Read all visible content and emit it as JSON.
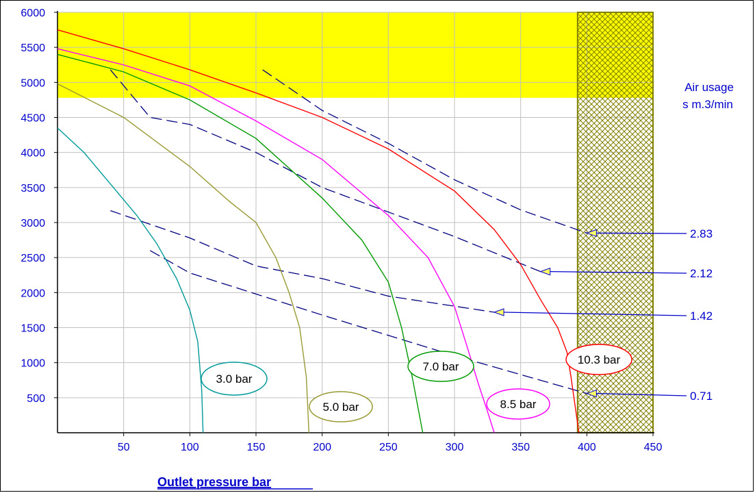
{
  "chart_data": {
    "type": "line",
    "xlabel": "Outlet pressure   bar",
    "ylabel": "",
    "xlim": [
      0,
      450
    ],
    "ylim": [
      0,
      6000
    ],
    "x_ticks": [
      50,
      100,
      150,
      200,
      250,
      300,
      350,
      400,
      450
    ],
    "y_ticks": [
      500,
      1000,
      1500,
      2000,
      2500,
      3000,
      3500,
      4000,
      4500,
      5000,
      5500,
      6000
    ],
    "grid": true,
    "highlight_band": {
      "y_from": 4780,
      "y_to": 6000,
      "color": "#ffff00"
    },
    "hatched_region": {
      "x_from": 393,
      "x_to": 450,
      "color": "#808000"
    },
    "air_usage_title": [
      "Air usage",
      "s m.3/min"
    ],
    "series": [
      {
        "name": "3.0 bar",
        "color": "#009999",
        "x": [
          0,
          20,
          40,
          60,
          75,
          90,
          100,
          106,
          109,
          110
        ],
        "y": [
          4350,
          4000,
          3550,
          3100,
          2700,
          2200,
          1750,
          1300,
          600,
          0
        ]
      },
      {
        "name": "5.0 bar",
        "color": "#999933",
        "x": [
          0,
          50,
          100,
          130,
          150,
          165,
          175,
          183,
          188,
          190
        ],
        "y": [
          4980,
          4500,
          3800,
          3300,
          3000,
          2500,
          2000,
          1500,
          800,
          0
        ]
      },
      {
        "name": "7.0 bar",
        "color": "#009900",
        "x": [
          0,
          50,
          100,
          150,
          200,
          230,
          250,
          260,
          268,
          273,
          276
        ],
        "y": [
          5400,
          5150,
          4750,
          4200,
          3350,
          2750,
          2150,
          1500,
          800,
          300,
          0
        ]
      },
      {
        "name": "8.5 bar",
        "color": "#ff00ff",
        "x": [
          0,
          50,
          100,
          150,
          200,
          250,
          280,
          300,
          310,
          318,
          325,
          330
        ],
        "y": [
          5480,
          5250,
          4950,
          4450,
          3900,
          3100,
          2500,
          1800,
          1200,
          700,
          300,
          0
        ]
      },
      {
        "name": "10.3 bar",
        "color": "#ff0000",
        "x": [
          0,
          50,
          100,
          150,
          200,
          250,
          300,
          330,
          350,
          365,
          378,
          385,
          388,
          391,
          394
        ],
        "y": [
          5750,
          5480,
          5180,
          4850,
          4500,
          4050,
          3450,
          2900,
          2400,
          1900,
          1500,
          1150,
          800,
          400,
          0
        ]
      }
    ],
    "air_usage_lines": [
      {
        "label": "0.71",
        "x": [
          70,
          100,
          200,
          300,
          400
        ],
        "y": [
          2600,
          2280,
          1680,
          1100,
          560
        ]
      },
      {
        "label": "1.42",
        "x": [
          40,
          100,
          150,
          200,
          250,
          330
        ],
        "y": [
          3170,
          2780,
          2380,
          2200,
          1950,
          1720
        ]
      },
      {
        "label": "2.12",
        "x": [
          40,
          70,
          100,
          150,
          200,
          300,
          365
        ],
        "y": [
          5180,
          4500,
          4400,
          4000,
          3500,
          2800,
          2300
        ]
      },
      {
        "label": "2.83",
        "x": [
          155,
          200,
          250,
          300,
          350,
          400
        ],
        "y": [
          5180,
          4600,
          4130,
          3610,
          3180,
          2850
        ]
      }
    ]
  }
}
